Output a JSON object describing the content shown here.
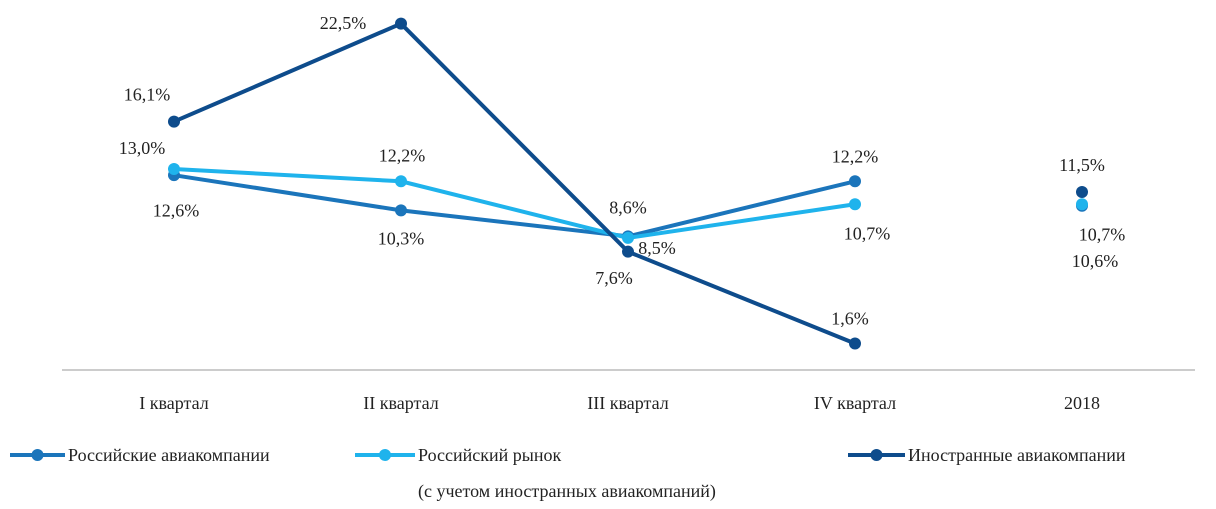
{
  "chart_data": {
    "type": "line",
    "categories": [
      "I квартал",
      "II квартал",
      "III квартал",
      "IV квартал"
    ],
    "total_category": "2018",
    "ylim": [
      0,
      23
    ],
    "series": [
      {
        "name": "Российские авиакомпании",
        "color": "#1b75bb",
        "values": [
          12.6,
          10.3,
          8.6,
          12.2
        ],
        "value_labels": [
          "12,6%",
          "10,3%",
          "8,6%",
          "12,2%"
        ],
        "total": 10.6,
        "total_label": "10,6%"
      },
      {
        "name": "Российский рынок\n(с учетом иностранных авиакомпаний)",
        "color": "#1fb3ec",
        "values": [
          13.0,
          12.2,
          8.5,
          10.7
        ],
        "value_labels": [
          "13,0%",
          "12,2%",
          "8,5%",
          "10,7%"
        ],
        "total": 10.7,
        "total_label": "10,7%"
      },
      {
        "name": "Иностранные авиакомпании",
        "color": "#0e4c8c",
        "values": [
          16.1,
          22.5,
          7.6,
          1.6
        ],
        "value_labels": [
          "16,1%",
          "22,5%",
          "7,6%",
          "1,6%"
        ],
        "total": 11.5,
        "total_label": "11,5%"
      }
    ]
  }
}
